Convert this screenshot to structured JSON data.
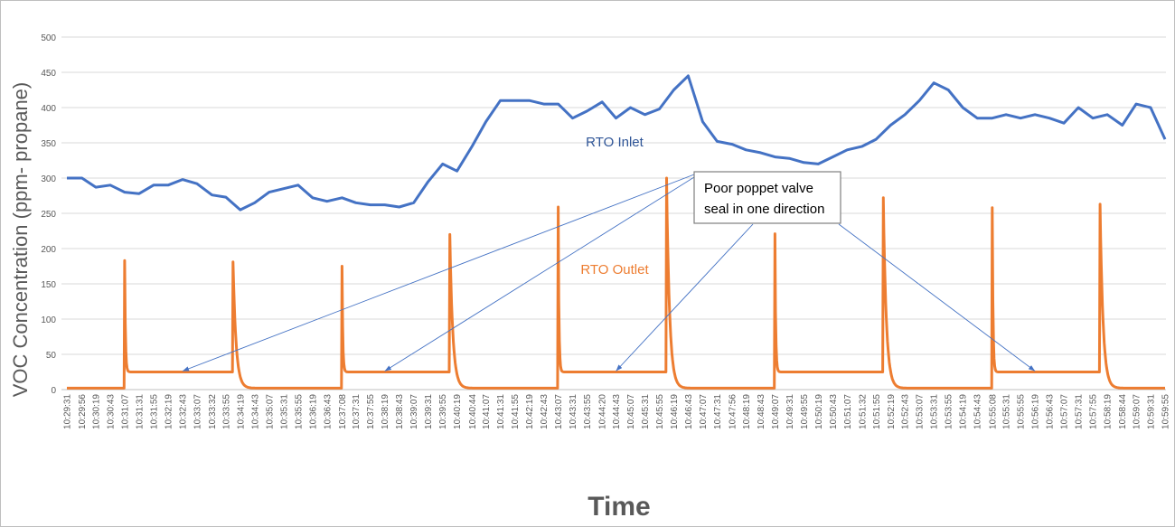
{
  "chart_data": {
    "type": "line",
    "title": "",
    "xlabel": "Time",
    "ylabel": "VOC Concentration (ppm- propane)",
    "ylim": [
      0,
      500
    ],
    "yticks": [
      0,
      50,
      100,
      150,
      200,
      250,
      300,
      350,
      400,
      450,
      500
    ],
    "grid": true,
    "legend": "none",
    "x": [
      "10:29:31",
      "10:29:56",
      "10:30:19",
      "10:30:43",
      "10:31:07",
      "10:31:31",
      "10:31:55",
      "10:32:19",
      "10:32:43",
      "10:33:07",
      "10:33:32",
      "10:33:55",
      "10:34:19",
      "10:34:43",
      "10:35:07",
      "10:35:31",
      "10:35:55",
      "10:36:19",
      "10:36:43",
      "10:37:08",
      "10:37:31",
      "10:37:55",
      "10:38:19",
      "10:38:43",
      "10:39:07",
      "10:39:31",
      "10:39:55",
      "10:40:19",
      "10:40:44",
      "10:41:07",
      "10:41:31",
      "10:41:55",
      "10:42:19",
      "10:42:43",
      "10:43:07",
      "10:43:31",
      "10:43:55",
      "10:44:20",
      "10:44:43",
      "10:45:07",
      "10:45:31",
      "10:45:55",
      "10:46:19",
      "10:46:43",
      "10:47:07",
      "10:47:31",
      "10:47:56",
      "10:48:19",
      "10:48:43",
      "10:49:07",
      "10:49:31",
      "10:49:55",
      "10:50:19",
      "10:50:43",
      "10:51:07",
      "10:51:32",
      "10:51:55",
      "10:52:19",
      "10:52:43",
      "10:53:07",
      "10:53:31",
      "10:53:55",
      "10:54:19",
      "10:54:43",
      "10:55:08",
      "10:55:31",
      "10:55:55",
      "10:56:19",
      "10:56:43",
      "10:57:07",
      "10:57:31",
      "10:57:55",
      "10:58:19",
      "10:58:44",
      "10:59:07",
      "10:59:31",
      "10:59:55"
    ],
    "series": [
      {
        "name": "RTO Inlet",
        "color": "#4472C4",
        "label_color": "#2F5597",
        "values": [
          300,
          300,
          287,
          290,
          280,
          278,
          290,
          290,
          298,
          292,
          276,
          273,
          255,
          265,
          280,
          285,
          290,
          272,
          267,
          272,
          265,
          262,
          262,
          259,
          265,
          295,
          320,
          310,
          345,
          380,
          410,
          410,
          410,
          405,
          405,
          385,
          395,
          408,
          385,
          400,
          390,
          398,
          425,
          445,
          380,
          352,
          348,
          340,
          336,
          330,
          328,
          322,
          320,
          330,
          340,
          345,
          355,
          375,
          390,
          410,
          435,
          425,
          400,
          385,
          385,
          390,
          385,
          390,
          385,
          378,
          400,
          385,
          390,
          375,
          405,
          400,
          355
        ]
      },
      {
        "name": "RTO Outlet",
        "color": "#ED7D31",
        "label_color": "#ED7D31",
        "baseline_level": 2,
        "spikes": [
          {
            "time": "10:31:07",
            "peak": 183,
            "level_after": 25
          },
          {
            "time": "10:34:07",
            "peak": 181,
            "level_after": 2
          },
          {
            "time": "10:37:08",
            "peak": 175,
            "level_after": 25
          },
          {
            "time": "10:40:07",
            "peak": 220,
            "level_after": 2
          },
          {
            "time": "10:43:07",
            "peak": 259,
            "level_after": 25
          },
          {
            "time": "10:46:07",
            "peak": 300,
            "level_after": 2
          },
          {
            "time": "10:49:07",
            "peak": 221,
            "level_after": 25
          },
          {
            "time": "10:52:07",
            "peak": 272,
            "level_after": 2
          },
          {
            "time": "10:55:08",
            "peak": 258,
            "level_after": 25
          },
          {
            "time": "10:58:07",
            "peak": 263,
            "level_after": 2
          }
        ]
      }
    ],
    "annotation": {
      "text_line1": "Poor poppet valve",
      "text_line2": "seal in one direction",
      "arrow_targets": [
        {
          "time": "10:32:43",
          "value": 25
        },
        {
          "time": "10:38:19",
          "value": 25
        },
        {
          "time": "10:44:43",
          "value": 25
        },
        {
          "time": "10:56:19",
          "value": 25
        }
      ]
    }
  }
}
